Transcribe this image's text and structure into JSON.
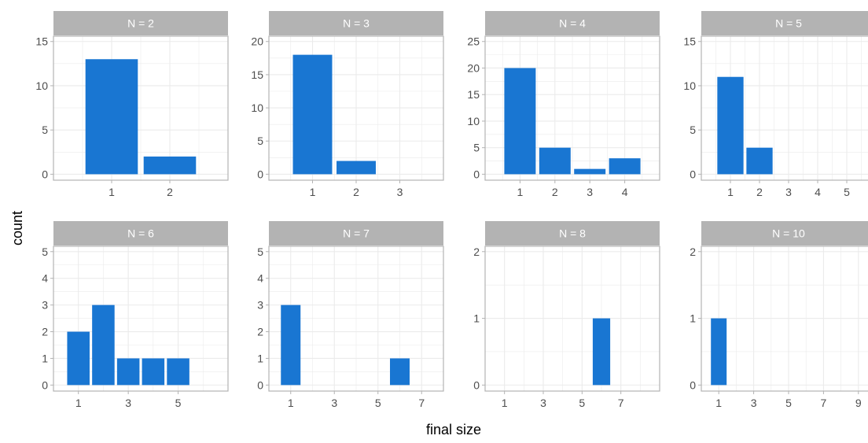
{
  "figure": {
    "xlabel": "final size",
    "ylabel": "count"
  },
  "colors": {
    "bar": "#1976d2",
    "strip": "#b3b3b3",
    "strip_text": "#ffffff",
    "grid": "#ebebeb",
    "border": "#b3b3b3",
    "tick_text": "#4d4d4d"
  },
  "chart_data": [
    {
      "type": "bar",
      "title": "N = 2",
      "categories": [
        1,
        2
      ],
      "values": [
        13,
        2
      ],
      "xlim": [
        0,
        3
      ],
      "xticks": [
        1,
        2
      ],
      "ylim": [
        0,
        15
      ],
      "yticks": [
        0,
        5,
        10,
        15
      ]
    },
    {
      "type": "bar",
      "title": "N = 3",
      "categories": [
        1,
        2
      ],
      "values": [
        18,
        2
      ],
      "xlim": [
        0,
        4
      ],
      "xticks": [
        1,
        2,
        3
      ],
      "ylim": [
        0,
        20
      ],
      "yticks": [
        0,
        5,
        10,
        15,
        20
      ]
    },
    {
      "type": "bar",
      "title": "N = 4",
      "categories": [
        1,
        2,
        3,
        4
      ],
      "values": [
        20,
        5,
        1,
        3
      ],
      "xlim": [
        0,
        5
      ],
      "xticks": [
        1,
        2,
        3,
        4
      ],
      "ylim": [
        0,
        25
      ],
      "yticks": [
        0,
        5,
        10,
        15,
        20,
        25
      ]
    },
    {
      "type": "bar",
      "title": "N = 5",
      "categories": [
        1,
        2
      ],
      "values": [
        11,
        3
      ],
      "xlim": [
        0,
        6
      ],
      "xticks": [
        1,
        2,
        3,
        4,
        5
      ],
      "ylim": [
        0,
        15
      ],
      "yticks": [
        0,
        5,
        10,
        15
      ]
    },
    {
      "type": "bar",
      "title": "N = 6",
      "categories": [
        1,
        2,
        3,
        4,
        5
      ],
      "values": [
        2,
        3,
        1,
        1,
        1
      ],
      "xlim": [
        0,
        7
      ],
      "xticks": [
        1,
        3,
        5
      ],
      "ylim": [
        0,
        5
      ],
      "yticks": [
        0,
        1,
        2,
        3,
        4,
        5
      ]
    },
    {
      "type": "bar",
      "title": "N = 7",
      "categories": [
        1,
        6
      ],
      "values": [
        3,
        1
      ],
      "xlim": [
        0,
        8
      ],
      "xticks": [
        1,
        3,
        5,
        7
      ],
      "ylim": [
        0,
        5
      ],
      "yticks": [
        0,
        1,
        2,
        3,
        4,
        5
      ]
    },
    {
      "type": "bar",
      "title": "N = 8",
      "categories": [
        6
      ],
      "values": [
        1
      ],
      "xlim": [
        0,
        9
      ],
      "xticks": [
        1,
        3,
        5,
        7
      ],
      "ylim": [
        0,
        2
      ],
      "yticks": [
        0,
        1,
        2
      ]
    },
    {
      "type": "bar",
      "title": "N = 10",
      "categories": [
        1
      ],
      "values": [
        1
      ],
      "xlim": [
        0,
        10
      ],
      "xticks": [
        1,
        3,
        5,
        7,
        9
      ],
      "ylim": [
        0,
        2
      ],
      "yticks": [
        0,
        1,
        2
      ]
    }
  ]
}
